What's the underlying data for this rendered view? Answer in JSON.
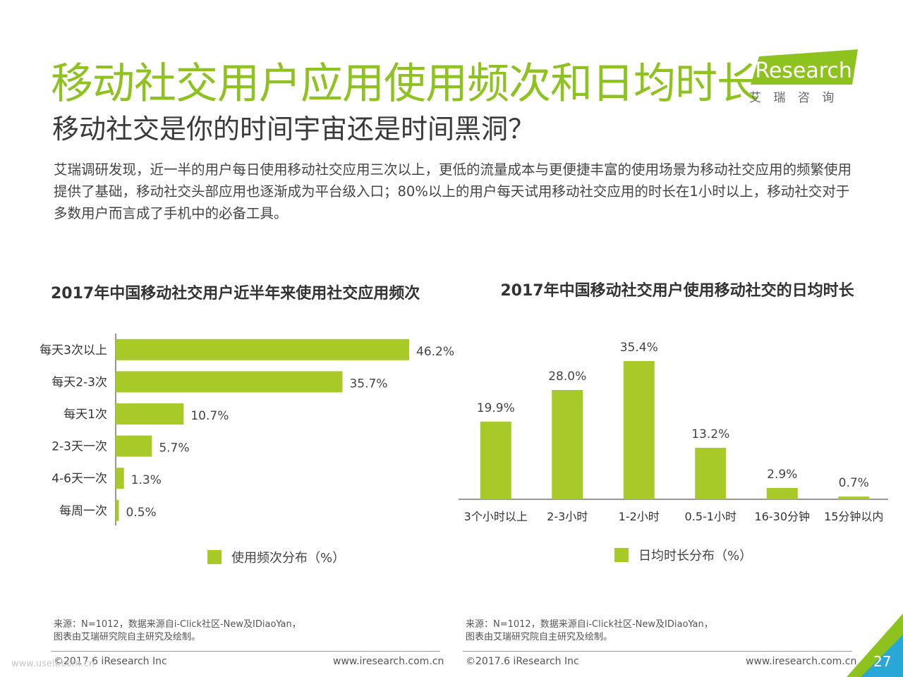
{
  "header": {
    "title": "移动社交用户应用使用频次和日均时长",
    "subtitle": "移动社交是你的时间宇宙还是时间黑洞？",
    "body": "艾瑞调研发现，近一半的用户每日使用移动社交应用三次以上，更低的流量成本与更便捷丰富的使用场景为移动社交应用的频繁使用提供了基础，移动社交头部应用也逐渐成为平台级入口；80%以上的用户每天试用移动社交应用的时长在1小时以上，移动社交对于多数用户而言成了手机中的必备工具。"
  },
  "logo": {
    "brand": "iResearch",
    "cn": "艾 瑞 咨 询"
  },
  "colors": {
    "accent": "#8dc21f",
    "bar": "#a7ca29",
    "axis": "#333333"
  },
  "chart_data": [
    {
      "type": "bar",
      "orientation": "horizontal",
      "title": "2017年中国移动社交用户近半年来使用社交应用频次",
      "categories": [
        "每天3次以上",
        "每天2-3次",
        "每天1次",
        "2-3天一次",
        "4-6天一次",
        "每周一次"
      ],
      "values": [
        46.2,
        35.7,
        10.7,
        5.7,
        1.3,
        0.5
      ],
      "value_labels": [
        "46.2%",
        "35.7%",
        "10.7%",
        "5.7%",
        "1.3%",
        "0.5%"
      ],
      "series": [
        {
          "name": "使用频次分布（%）",
          "values": [
            46.2,
            35.7,
            10.7,
            5.7,
            1.3,
            0.5
          ]
        }
      ],
      "legend": "bottom",
      "grid": false
    },
    {
      "type": "bar",
      "orientation": "vertical",
      "title": "2017年中国移动社交用户使用移动社交的日均时长",
      "categories": [
        "3个小时以上",
        "2-3小时",
        "1-2小时",
        "0.5-1小时",
        "16-30分钟",
        "15分钟以内"
      ],
      "values": [
        19.9,
        28.0,
        35.4,
        13.2,
        2.9,
        0.7
      ],
      "value_labels": [
        "19.9%",
        "28.0%",
        "35.4%",
        "13.2%",
        "2.9%",
        "0.7%"
      ],
      "series": [
        {
          "name": "日均时长分布（%）",
          "values": [
            19.9,
            28.0,
            35.4,
            13.2,
            2.9,
            0.7
          ]
        }
      ],
      "legend": "bottom",
      "grid": false
    }
  ],
  "footer": {
    "source_line1": "来源：N=1012，数据来源自i-Click社区-New及IDiaoYan，",
    "source_line2": "图表由艾瑞研究院自主研究及绘制。",
    "copyright": "©2017.6 iResearch Inc",
    "url": "www.iresearch.com.cn",
    "page": "27",
    "watermark": "www.useit.com.cn"
  }
}
